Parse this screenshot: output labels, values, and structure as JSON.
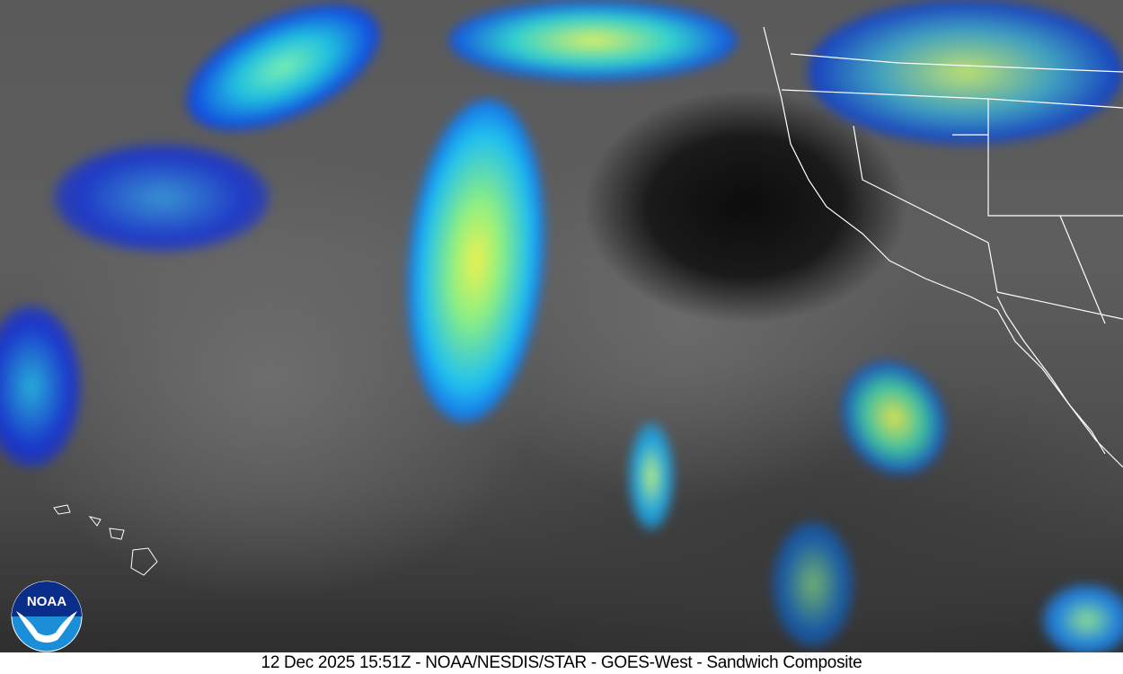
{
  "caption": "12 Dec 2025 15:51Z - NOAA/NESDIS/STAR - GOES-West - Sandwich Composite",
  "logo": {
    "text": "NOAA",
    "name": "noaa-logo"
  }
}
